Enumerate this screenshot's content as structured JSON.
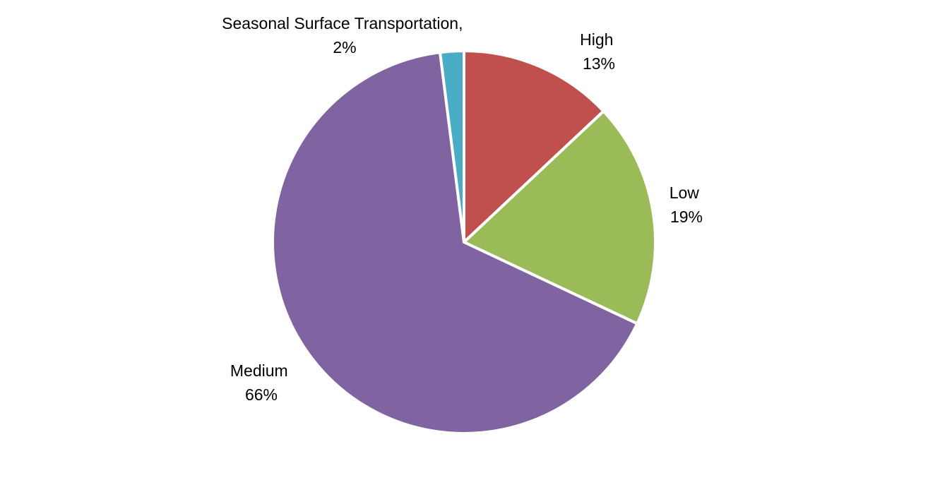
{
  "chart_data": {
    "type": "pie",
    "title": "",
    "start_angle_deg": 0,
    "direction": "clockwise",
    "slices": [
      {
        "name": "High",
        "value": 13,
        "percent_label": "13%",
        "color": "#C0504D"
      },
      {
        "name": "Low",
        "value": 19,
        "percent_label": "19%",
        "color": "#9BBB59"
      },
      {
        "name": "Medium",
        "value": 66,
        "percent_label": "66%",
        "color": "#8064A2"
      },
      {
        "name": "Seasonal Surface Transportation,",
        "value": 2,
        "percent_label": "2%",
        "color": "#4BACC6"
      }
    ],
    "legend": "none",
    "data_labels": "outside, category name and percentage"
  }
}
